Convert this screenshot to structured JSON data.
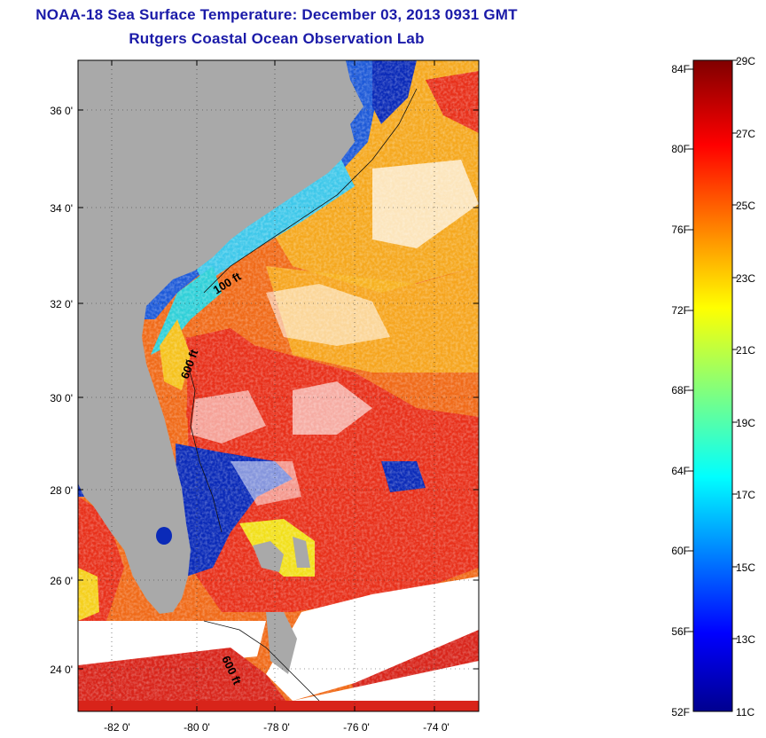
{
  "title": {
    "line1": "NOAA-18 Sea Surface Temperature:  December 03, 2013 0931 GMT",
    "line2": "Rutgers Coastal Ocean Observation Lab"
  },
  "map": {
    "lat_labels": [
      "36 0'",
      "34 0'",
      "32 0'",
      "30 0'",
      "28 0'",
      "26 0'",
      "24 0'"
    ],
    "lon_labels": [
      "-82 0'",
      "-80 0'",
      "-78 0'",
      "-76 0'",
      "-74 0'"
    ],
    "isobath_labels": [
      "100 ft",
      "600 ft",
      "600 ft"
    ],
    "colors": {
      "land": "#a9a9a9",
      "cloud": "#ffffff",
      "warm": "#e8301a",
      "cool": "#0a2ab8"
    }
  },
  "colorbar": {
    "fahrenheit_labels": [
      "84F",
      "80F",
      "76F",
      "72F",
      "68F",
      "64F",
      "60F",
      "56F",
      "52F"
    ],
    "celsius_labels": [
      "29C",
      "27C",
      "25C",
      "23C",
      "21C",
      "19C",
      "17C",
      "15C",
      "13C",
      "11C"
    ],
    "range_celsius": [
      11,
      29
    ]
  }
}
